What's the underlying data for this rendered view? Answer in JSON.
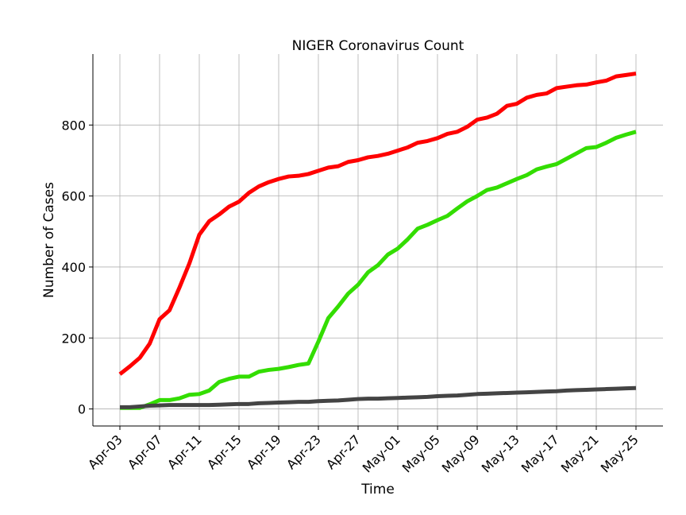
{
  "chart_data": {
    "type": "line",
    "title": "NIGER Coronavirus Count",
    "xlabel": "Time",
    "ylabel": "Number of Cases",
    "grid": true,
    "ylim": [
      -48,
      1000
    ],
    "y_ticks": [
      0,
      200,
      400,
      600,
      800
    ],
    "x_ticks": [
      "Apr-03",
      "Apr-07",
      "Apr-11",
      "Apr-15",
      "Apr-19",
      "Apr-23",
      "Apr-27",
      "May-01",
      "May-05",
      "May-09",
      "May-13",
      "May-17",
      "May-21",
      "May-25"
    ],
    "x": [
      "Apr-03",
      "Apr-04",
      "Apr-05",
      "Apr-06",
      "Apr-07",
      "Apr-08",
      "Apr-09",
      "Apr-10",
      "Apr-11",
      "Apr-12",
      "Apr-13",
      "Apr-14",
      "Apr-15",
      "Apr-16",
      "Apr-17",
      "Apr-18",
      "Apr-19",
      "Apr-20",
      "Apr-21",
      "Apr-22",
      "Apr-23",
      "Apr-24",
      "Apr-25",
      "Apr-26",
      "Apr-27",
      "Apr-28",
      "Apr-29",
      "Apr-30",
      "May-01",
      "May-02",
      "May-03",
      "May-04",
      "May-05",
      "May-06",
      "May-07",
      "May-08",
      "May-09",
      "May-10",
      "May-11",
      "May-12",
      "May-13",
      "May-14",
      "May-15",
      "May-16",
      "May-17",
      "May-18",
      "May-19",
      "May-20",
      "May-21",
      "May-22",
      "May-23",
      "May-24",
      "May-25"
    ],
    "series": [
      {
        "color": "#ff0000",
        "values": [
          98,
          120,
          144,
          184,
          253,
          278,
          342,
          410,
          491,
          529,
          548,
          570,
          584,
          609,
          627,
          639,
          648,
          655,
          657,
          662,
          671,
          680,
          684,
          696,
          701,
          709,
          713,
          719,
          728,
          737,
          750,
          755,
          763,
          775,
          781,
          795,
          815,
          821,
          832,
          854,
          860,
          877,
          885,
          889,
          904,
          908,
          912,
          914,
          920,
          925,
          937,
          941,
          945
        ]
      },
      {
        "color": "#33dd00",
        "values": [
          3,
          3,
          3,
          13,
          25,
          25,
          30,
          40,
          42,
          52,
          76,
          85,
          91,
          91,
          105,
          110,
          113,
          118,
          124,
          128,
          190,
          256,
          289,
          325,
          350,
          385,
          405,
          435,
          452,
          478,
          508,
          519,
          532,
          544,
          565,
          585,
          600,
          617,
          624,
          636,
          648,
          659,
          675,
          683,
          690,
          705,
          720,
          735,
          738,
          750,
          764,
          773,
          781
        ]
      },
      {
        "color": "#444444",
        "values": [
          5,
          5,
          7,
          9,
          10,
          11,
          11,
          11,
          11,
          11,
          12,
          13,
          14,
          14,
          16,
          17,
          18,
          19,
          20,
          20,
          22,
          23,
          24,
          26,
          28,
          29,
          29,
          30,
          31,
          32,
          33,
          34,
          36,
          37,
          38,
          40,
          42,
          43,
          44,
          45,
          46,
          47,
          48,
          49,
          50,
          52,
          53,
          54,
          55,
          56,
          57,
          58,
          59
        ]
      }
    ]
  }
}
